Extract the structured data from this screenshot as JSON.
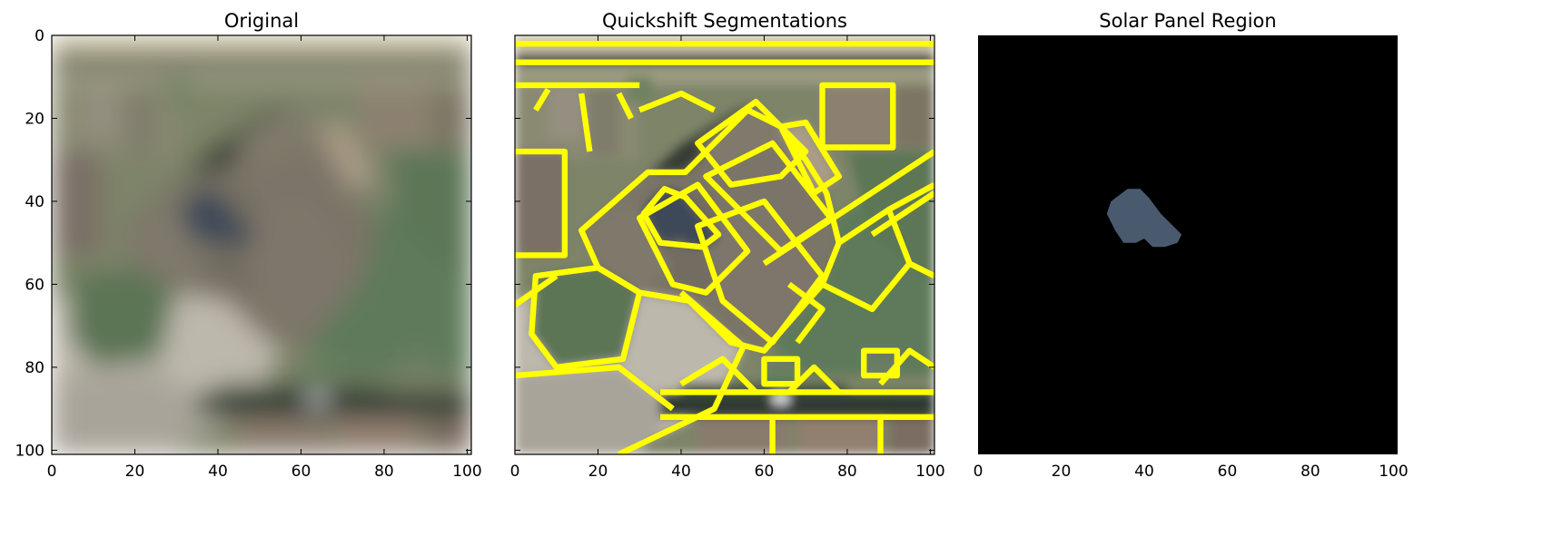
{
  "chart_data": [
    {
      "type": "image",
      "title": "Original",
      "xlim": [
        0,
        101
      ],
      "ylim": [
        101,
        0
      ],
      "xticks": [
        0,
        20,
        40,
        60,
        80,
        100
      ],
      "yticks": [
        0,
        20,
        40,
        60,
        80,
        100
      ],
      "xtick_labels": [
        "0",
        "20",
        "40",
        "60",
        "80",
        "100"
      ],
      "ytick_labels": [
        "0",
        "20",
        "40",
        "60",
        "80",
        "100"
      ],
      "show_yticklabels": true,
      "show_xticks": true,
      "show_yticks": true,
      "content": "aerial-photo-of-house-roofs-and-lawn"
    },
    {
      "type": "image",
      "title": "Quickshift Segmentations",
      "xlim": [
        0,
        101
      ],
      "ylim": [
        101,
        0
      ],
      "xticks": [
        0,
        20,
        40,
        60,
        80,
        100
      ],
      "yticks": [
        0,
        20,
        40,
        60,
        80,
        100
      ],
      "xtick_labels": [
        "0",
        "20",
        "40",
        "60",
        "80",
        "100"
      ],
      "ytick_labels": [],
      "show_yticklabels": false,
      "show_xticks": true,
      "show_yticks": true,
      "content": "aerial-photo-with-yellow-segment-boundaries",
      "boundary_color": "#ffff00"
    },
    {
      "type": "image",
      "title": "Solar Panel Region",
      "xlim": [
        0,
        101
      ],
      "ylim": [
        101,
        0
      ],
      "xticks": [
        0,
        20,
        40,
        60,
        80,
        100
      ],
      "yticks": [],
      "xtick_labels": [
        "0",
        "20",
        "40",
        "60",
        "80",
        "100"
      ],
      "ytick_labels": [],
      "show_yticklabels": false,
      "show_xticks": false,
      "show_yticks": false,
      "content": "black-mask-with-single-segment",
      "region_polygon": [
        [
          36,
          37
        ],
        [
          39,
          37
        ],
        [
          41,
          39
        ],
        [
          44,
          43
        ],
        [
          47,
          46
        ],
        [
          49,
          48
        ],
        [
          48,
          50
        ],
        [
          45,
          51
        ],
        [
          42,
          51
        ],
        [
          40,
          49
        ],
        [
          38,
          50
        ],
        [
          35,
          50
        ],
        [
          33,
          47
        ],
        [
          31,
          43
        ],
        [
          32,
          40
        ]
      ],
      "region_color": "#4a5a6e",
      "background_color": "#000000"
    }
  ]
}
